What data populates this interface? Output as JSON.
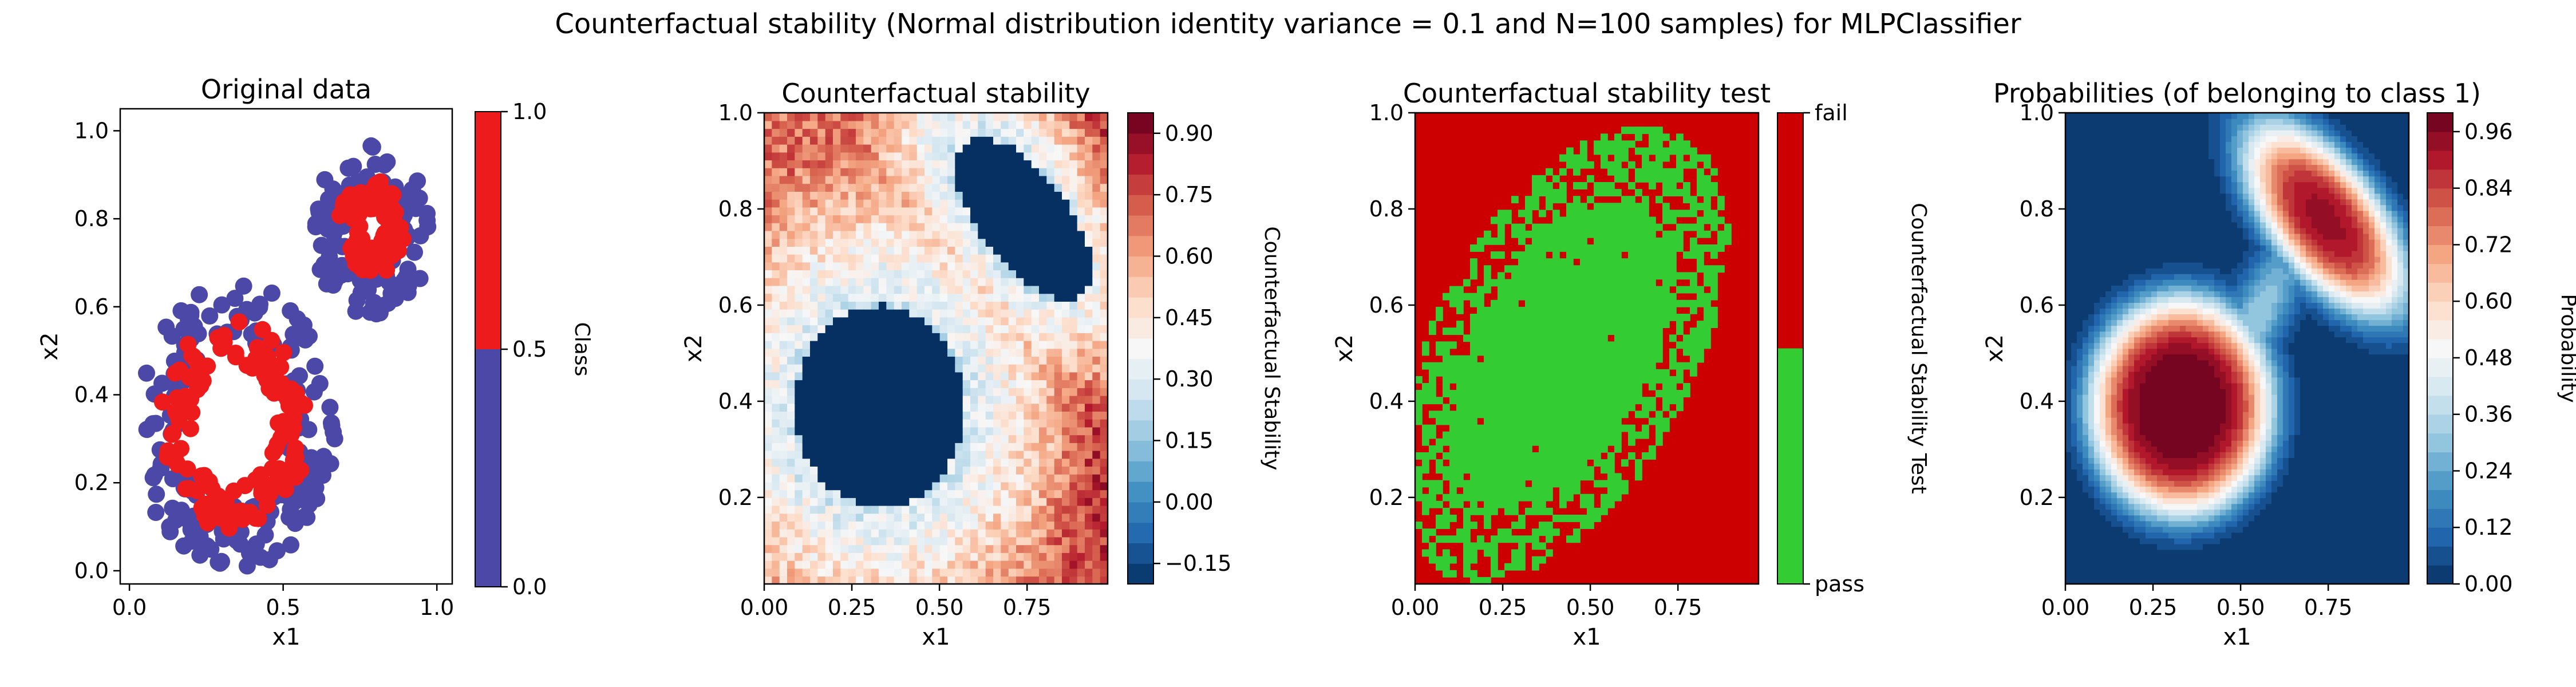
{
  "suptitle": "Counterfactual stability (Normal distribution identity variance = 0.1 and N=100 samples) for MLPClassifier",
  "colors": {
    "class0": "#4b48a8",
    "class1": "#ed1b1b",
    "pass": "#33cc33",
    "fail": "#cc0000",
    "rdbu_low": "#053061",
    "rdbu_high": "#67001f"
  },
  "chart_data": [
    {
      "type": "scatter",
      "title": "Original data",
      "xlabel": "x1",
      "ylabel": "x2",
      "xlim": [
        -0.03,
        1.05
      ],
      "ylim": [
        -0.03,
        1.05
      ],
      "xticks": [
        "0.0",
        "0.5",
        "1.0"
      ],
      "xtick_values": [
        0.0,
        0.5,
        1.0
      ],
      "yticks": [
        "0.0",
        "0.2",
        "0.4",
        "0.6",
        "0.8",
        "1.0"
      ],
      "ytick_values": [
        0.0,
        0.2,
        0.4,
        0.6,
        0.8,
        1.0
      ],
      "rings": [
        {
          "class": 0,
          "cx": 0.34,
          "cy": 0.33,
          "r_inner": 0.18,
          "r_outer": 0.33
        },
        {
          "class": 0,
          "cx": 0.79,
          "cy": 0.78,
          "r_inner": 0.08,
          "r_outer": 0.2
        },
        {
          "class": 1,
          "cx": 0.34,
          "cy": 0.33,
          "r_inner": 0.14,
          "r_outer": 0.24
        },
        {
          "class": 1,
          "cx": 0.79,
          "cy": 0.78,
          "r_inner": 0.04,
          "r_outer": 0.11
        }
      ],
      "colorbar": {
        "label": "Class",
        "ticks": [
          "0.0",
          "0.5",
          "1.0"
        ],
        "tick_values": [
          0.0,
          0.5,
          1.0
        ]
      }
    },
    {
      "type": "heatmap",
      "title": "Counterfactual stability",
      "xlabel": "x1",
      "ylabel": "x2",
      "xlim": [
        0.0,
        0.98
      ],
      "ylim": [
        0.02,
        1.0
      ],
      "xticks": [
        "0.00",
        "0.25",
        "0.50",
        "0.75"
      ],
      "xtick_values": [
        0.0,
        0.25,
        0.5,
        0.75
      ],
      "yticks": [
        "0.2",
        "0.4",
        "0.6",
        "0.8",
        "1.0"
      ],
      "ytick_values": [
        0.2,
        0.4,
        0.6,
        0.8,
        1.0
      ],
      "colorbar": {
        "label": "Counterfactual Stability",
        "range": [
          -0.2,
          0.95
        ],
        "ticks": [
          "−0.15",
          "0.00",
          "0.15",
          "0.30",
          "0.45",
          "0.60",
          "0.75",
          "0.90"
        ],
        "tick_values": [
          -0.15,
          0.0,
          0.15,
          0.3,
          0.45,
          0.6,
          0.75,
          0.9
        ]
      }
    },
    {
      "type": "heatmap",
      "title": "Counterfactual stability test",
      "xlabel": "x1",
      "ylabel": "x2",
      "xlim": [
        0.0,
        0.98
      ],
      "ylim": [
        0.02,
        1.0
      ],
      "xticks": [
        "0.00",
        "0.25",
        "0.50",
        "0.75"
      ],
      "xtick_values": [
        0.0,
        0.25,
        0.5,
        0.75
      ],
      "yticks": [
        "0.2",
        "0.4",
        "0.6",
        "0.8",
        "1.0"
      ],
      "ytick_values": [
        0.2,
        0.4,
        0.6,
        0.8,
        1.0
      ],
      "categories": [
        "pass",
        "fail"
      ],
      "colorbar": {
        "label": "Counterfactual Stability Test",
        "ticks": [
          "pass",
          "fail"
        ]
      }
    },
    {
      "type": "heatmap",
      "title": "Probabilities (of belonging to class 1)",
      "xlabel": "x1",
      "ylabel": "x2",
      "xlim": [
        0.0,
        0.98
      ],
      "ylim": [
        0.02,
        1.0
      ],
      "xticks": [
        "0.00",
        "0.25",
        "0.50",
        "0.75"
      ],
      "xtick_values": [
        0.0,
        0.25,
        0.5,
        0.75
      ],
      "yticks": [
        "0.2",
        "0.4",
        "0.6",
        "0.8",
        "1.0"
      ],
      "ytick_values": [
        0.2,
        0.4,
        0.6,
        0.8,
        1.0
      ],
      "colorbar": {
        "label": "Probability",
        "range": [
          0.0,
          1.0
        ],
        "ticks": [
          "0.00",
          "0.12",
          "0.24",
          "0.36",
          "0.48",
          "0.60",
          "0.72",
          "0.84",
          "0.96"
        ],
        "tick_values": [
          0.0,
          0.12,
          0.24,
          0.36,
          0.48,
          0.6,
          0.72,
          0.84,
          0.96
        ]
      }
    }
  ]
}
